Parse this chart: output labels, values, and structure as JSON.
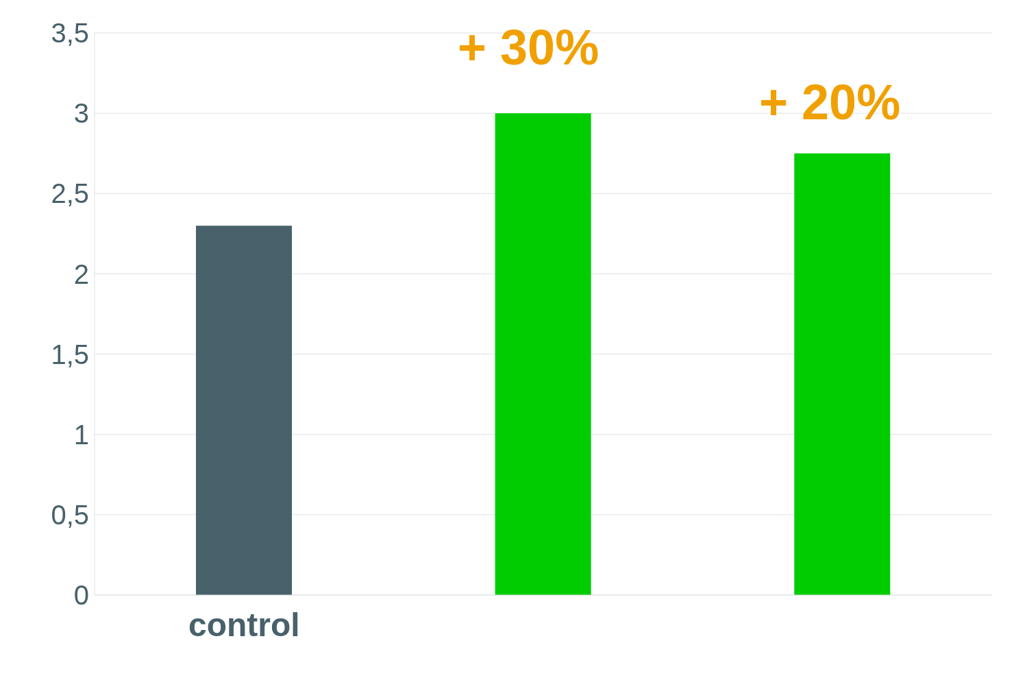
{
  "chart_data": {
    "type": "bar",
    "categories": [
      "control",
      null,
      null
    ],
    "values": [
      2.3,
      3.0,
      2.75
    ],
    "colors": [
      "#48616a",
      "#00cc00",
      "#00cc00"
    ],
    "annotations": [
      "+ 30%",
      "+ 20%"
    ],
    "ylim": [
      0,
      3.5
    ],
    "yticks": [
      0,
      {
        "value": 0.5,
        "label": "0,5"
      },
      1,
      {
        "value": 1.5,
        "label": "1,5"
      },
      2,
      {
        "value": 2.5,
        "label": "2,5"
      },
      3,
      {
        "value": 3.5,
        "label": "3,5"
      }
    ],
    "grid": "y"
  }
}
